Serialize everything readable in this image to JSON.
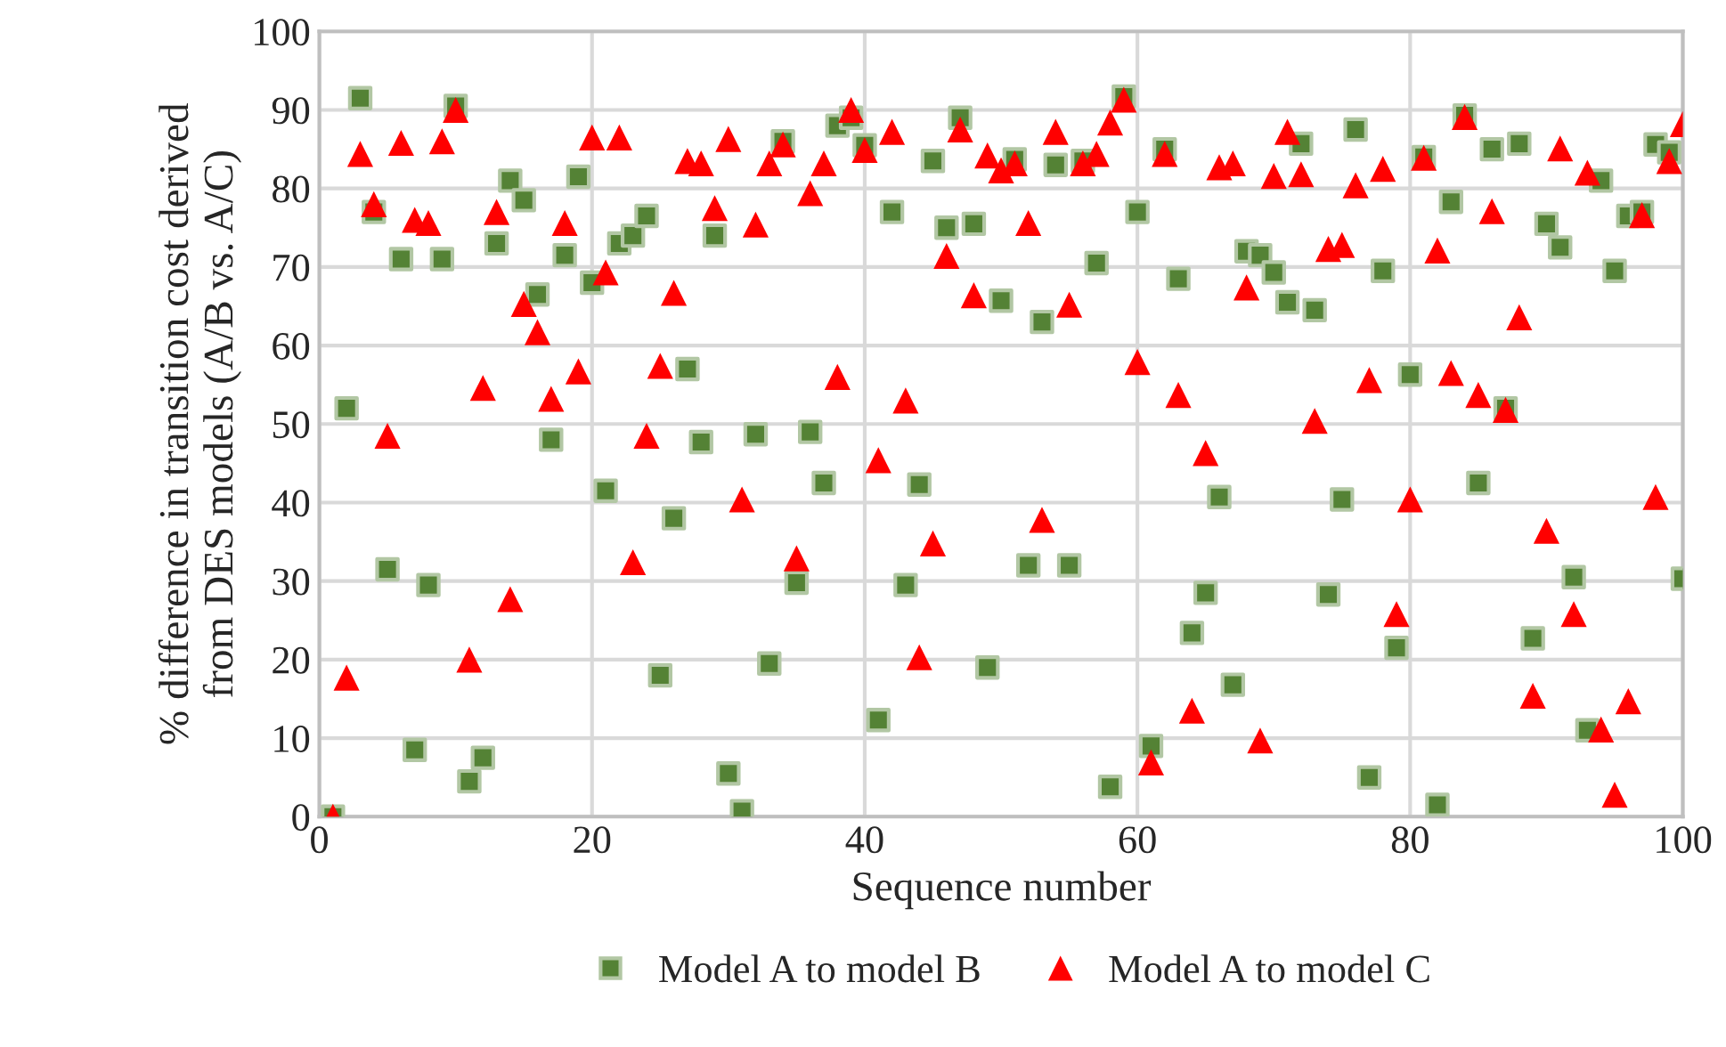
{
  "chart_data": {
    "type": "scatter",
    "xlabel": "Sequence number",
    "ylabel": "% difference in transition cost derived\nfrom DES models (A/B vs. A/C)",
    "xlim": [
      0,
      100
    ],
    "xticks": [
      0,
      20,
      40,
      60,
      80,
      100
    ],
    "ylim": [
      0,
      100
    ],
    "yticks": [
      0,
      10,
      20,
      30,
      40,
      50,
      60,
      70,
      80,
      90,
      100
    ],
    "grid": true,
    "legend": "bottom",
    "x": [
      1,
      2,
      3,
      4,
      5,
      6,
      7,
      8,
      9,
      10,
      11,
      12,
      13,
      14,
      15,
      16,
      17,
      18,
      19,
      20,
      21,
      22,
      23,
      24,
      25,
      26,
      27,
      28,
      29,
      30,
      31,
      32,
      33,
      34,
      35,
      36,
      37,
      38,
      39,
      40,
      41,
      42,
      43,
      44,
      45,
      46,
      47,
      48,
      49,
      50,
      51,
      52,
      53,
      54,
      55,
      56,
      57,
      58,
      59,
      60,
      61,
      62,
      63,
      64,
      65,
      66,
      67,
      68,
      69,
      70,
      71,
      72,
      73,
      74,
      75,
      76,
      77,
      78,
      79,
      80,
      81,
      82,
      83,
      84,
      85,
      86,
      87,
      88,
      89,
      90,
      91,
      92,
      93,
      94,
      95,
      96,
      97,
      98,
      99,
      100
    ],
    "series": [
      {
        "name": "Model A to model B",
        "color": "#548235",
        "marker": "square",
        "values": [
          0,
          52,
          91.5,
          77,
          31.5,
          71,
          8.5,
          29.5,
          71,
          90.5,
          4.5,
          7.5,
          73,
          81,
          78.5,
          66.5,
          48,
          71.5,
          81.5,
          68,
          41.5,
          73,
          74,
          76.5,
          18,
          38,
          57,
          47.7,
          74,
          5.5,
          0.7,
          48.7,
          19.5,
          86,
          29.8,
          49,
          42.5,
          88,
          89,
          85.5,
          12.3,
          77,
          29.5,
          42.3,
          83.5,
          75,
          89,
          75.5,
          19,
          65.7,
          83.7,
          32,
          63,
          83,
          32,
          83.5,
          70.5,
          3.8,
          91.7,
          77,
          9,
          85,
          68.5,
          23.4,
          28.5,
          40.7,
          16.8,
          72,
          71.5,
          69.3,
          65.5,
          85.7,
          64.5,
          28.3,
          40.4,
          87.5,
          5,
          69.5,
          21.5,
          56.3,
          84,
          1.5,
          78.3,
          89.3,
          42.5,
          85,
          52,
          85.7,
          22.7,
          75.5,
          72.5,
          30.5,
          11,
          81,
          69.5,
          76.5,
          77,
          85.6,
          84.6,
          30.3
        ]
      },
      {
        "name": "Model A to model C",
        "color": "#ff0000",
        "marker": "triangle",
        "values": [
          0,
          17.7,
          84.4,
          78,
          48.5,
          85.8,
          76,
          75.6,
          86,
          90,
          20,
          54.6,
          77,
          27.7,
          65.3,
          61.7,
          53.2,
          75.6,
          56.7,
          86.5,
          69.3,
          86.5,
          32.4,
          48.5,
          57.4,
          66.7,
          83.5,
          83.2,
          77.5,
          86.3,
          40.4,
          75.4,
          83.2,
          85.6,
          32.9,
          79.4,
          83.2,
          56,
          90,
          84.9,
          45.4,
          87.2,
          53,
          20.3,
          34.8,
          71.4,
          87.5,
          66.4,
          84.2,
          82.3,
          83.2,
          75.6,
          37.8,
          87.2,
          65.2,
          83.2,
          84.4,
          88.4,
          91.3,
          57.9,
          6.9,
          84.4,
          53.7,
          13.5,
          46.3,
          82.7,
          83.2,
          67.4,
          9.7,
          81.6,
          87.2,
          81.8,
          50.4,
          72.3,
          72.8,
          80.4,
          55.6,
          82.5,
          25.8,
          40.4,
          83.9,
          72.1,
          56.5,
          89.1,
          53.7,
          77.1,
          51.8,
          63.6,
          15.4,
          36.4,
          85.1,
          25.8,
          82,
          11.1,
          2.8,
          14.7,
          76.6,
          40.7,
          83.5,
          88.2
        ]
      }
    ]
  }
}
